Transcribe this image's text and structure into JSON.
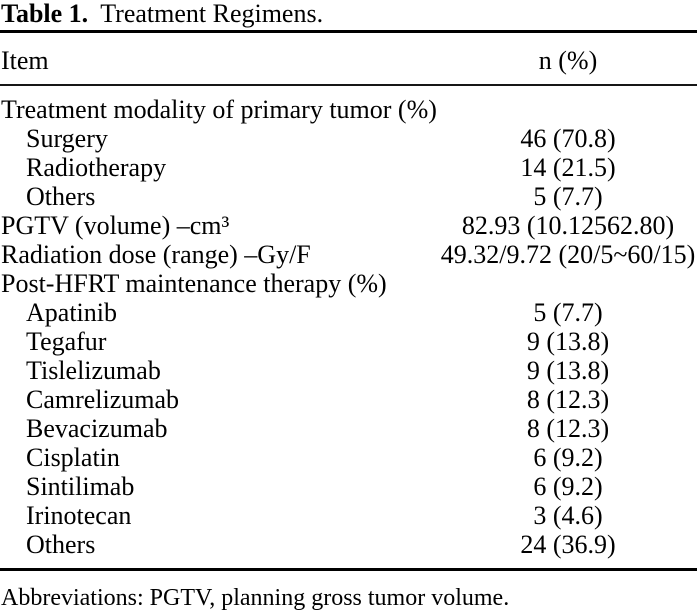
{
  "colors": {
    "background": "#ffffff",
    "text": "#000000",
    "rule": "#000000"
  },
  "table": {
    "title_label": "Table 1.",
    "title_caption": "Treatment Regimens.",
    "columns": {
      "item": "Item",
      "n_pct": "n (%)"
    },
    "rows": [
      {
        "label": "Treatment modality of primary tumor (%)",
        "value": "",
        "indent": false
      },
      {
        "label": "Surgery",
        "value": "46 (70.8)",
        "indent": true
      },
      {
        "label": "Radiotherapy",
        "value": "14 (21.5)",
        "indent": true
      },
      {
        "label": "Others",
        "value": "5 (7.7)",
        "indent": true
      },
      {
        "label": "PGTV (volume) –cm³",
        "value": "82.93 (10.12562.80)",
        "indent": false
      },
      {
        "label": "Radiation dose (range) –Gy/F",
        "value": "49.32/9.72 (20/5~60/15)",
        "indent": false
      },
      {
        "label": "Post-HFRT maintenance therapy (%)",
        "value": "",
        "indent": false
      },
      {
        "label": "Apatinib",
        "value": "5 (7.7)",
        "indent": true
      },
      {
        "label": "Tegafur",
        "value": "9 (13.8)",
        "indent": true
      },
      {
        "label": "Tislelizumab",
        "value": "9 (13.8)",
        "indent": true
      },
      {
        "label": "Camrelizumab",
        "value": "8 (12.3)",
        "indent": true
      },
      {
        "label": "Bevacizumab",
        "value": "8 (12.3)",
        "indent": true
      },
      {
        "label": "Cisplatin",
        "value": "6 (9.2)",
        "indent": true
      },
      {
        "label": "Sintilimab",
        "value": "6 (9.2)",
        "indent": true
      },
      {
        "label": "Irinotecan",
        "value": "3 (4.6)",
        "indent": true
      },
      {
        "label": "Others",
        "value": "24 (36.9)",
        "indent": true
      }
    ],
    "footnote": "Abbreviations: PGTV, planning gross tumor volume."
  }
}
